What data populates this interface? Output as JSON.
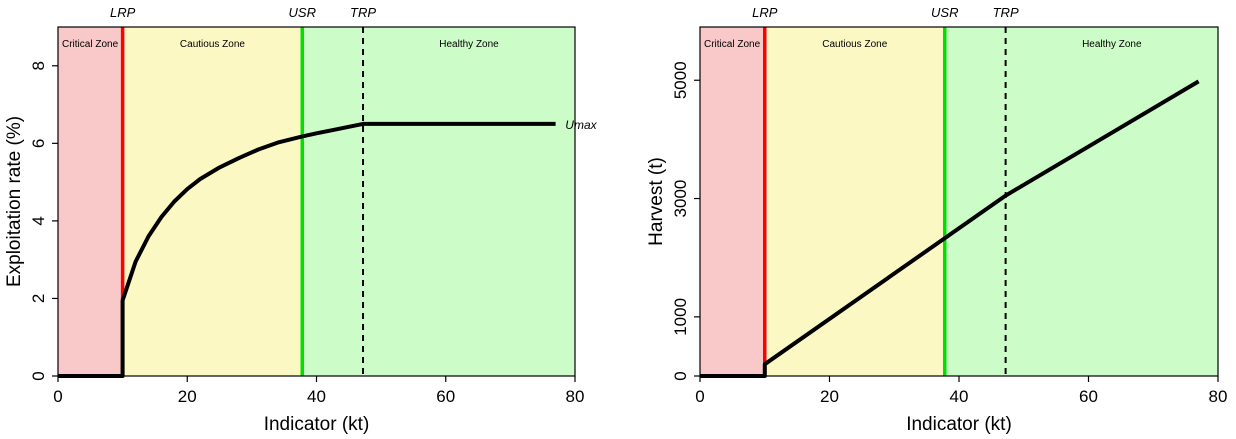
{
  "colors": {
    "critical_zone": "#f9c8c8",
    "cautious_zone": "#fbf8c3",
    "healthy_zone": "#ccfcc8",
    "lrp_line": "#ff0000",
    "usr_line": "#00e000",
    "trp_line": "#000000",
    "hcr_line": "#000000"
  },
  "chart_data": [
    {
      "type": "line",
      "title": "",
      "xlabel": "Indicator (kt)",
      "ylabel": "Exploitation rate (%)",
      "xlim": [
        0,
        80
      ],
      "ylim": [
        0,
        9
      ],
      "xticks": [
        0,
        20,
        40,
        60,
        80
      ],
      "yticks": [
        0,
        2,
        4,
        6,
        8
      ],
      "grid": false,
      "reference_points": [
        {
          "name": "LRP",
          "x": 10,
          "style": "solid",
          "color": "#ff0000"
        },
        {
          "name": "USR",
          "x": 37.8,
          "style": "solid",
          "color": "#00e000"
        },
        {
          "name": "TRP",
          "x": 47.2,
          "style": "dashed",
          "color": "#000000"
        }
      ],
      "zones": [
        {
          "name": "Critical Zone",
          "from": 0,
          "to": 10,
          "color": "#f9c8c8"
        },
        {
          "name": "Cautious Zone",
          "from": 10,
          "to": 37.8,
          "color": "#fbf8c3"
        },
        {
          "name": "Healthy Zone",
          "from": 37.8,
          "to": 80,
          "color": "#ccfcc8"
        }
      ],
      "annotations": [
        {
          "text": "Umax",
          "x": 78.5,
          "y": 6.5
        }
      ],
      "series": [
        {
          "x": [
            0,
            10,
            10,
            12,
            14,
            16,
            18,
            20,
            22,
            25,
            28,
            31,
            34,
            37.8,
            40,
            43,
            47.2,
            50,
            60,
            70,
            77
          ],
          "y": [
            0,
            0,
            1.95,
            2.95,
            3.6,
            4.1,
            4.5,
            4.82,
            5.08,
            5.38,
            5.62,
            5.84,
            6.02,
            6.18,
            6.26,
            6.36,
            6.5,
            6.5,
            6.5,
            6.5,
            6.5
          ]
        }
      ]
    },
    {
      "type": "line",
      "title": "",
      "xlabel": "Indicator (kt)",
      "ylabel": "Harvest (t)",
      "xlim": [
        0,
        80
      ],
      "ylim": [
        0,
        5900
      ],
      "xticks": [
        0,
        20,
        40,
        60,
        80
      ],
      "yticks": [
        0,
        1000,
        3000,
        5000
      ],
      "grid": false,
      "reference_points": [
        {
          "name": "LRP",
          "x": 10,
          "style": "solid",
          "color": "#ff0000"
        },
        {
          "name": "USR",
          "x": 37.8,
          "style": "solid",
          "color": "#00e000"
        },
        {
          "name": "TRP",
          "x": 47.2,
          "style": "dashed",
          "color": "#000000"
        }
      ],
      "zones": [
        {
          "name": "Critical Zone",
          "from": 0,
          "to": 10,
          "color": "#f9c8c8"
        },
        {
          "name": "Cautious Zone",
          "from": 10,
          "to": 37.8,
          "color": "#fbf8c3"
        },
        {
          "name": "Healthy Zone",
          "from": 37.8,
          "to": 80,
          "color": "#ccfcc8"
        }
      ],
      "annotations": [],
      "series": [
        {
          "x": [
            0,
            10,
            10,
            47.2,
            77
          ],
          "y": [
            0,
            0,
            200,
            3050,
            4980
          ]
        }
      ]
    }
  ]
}
